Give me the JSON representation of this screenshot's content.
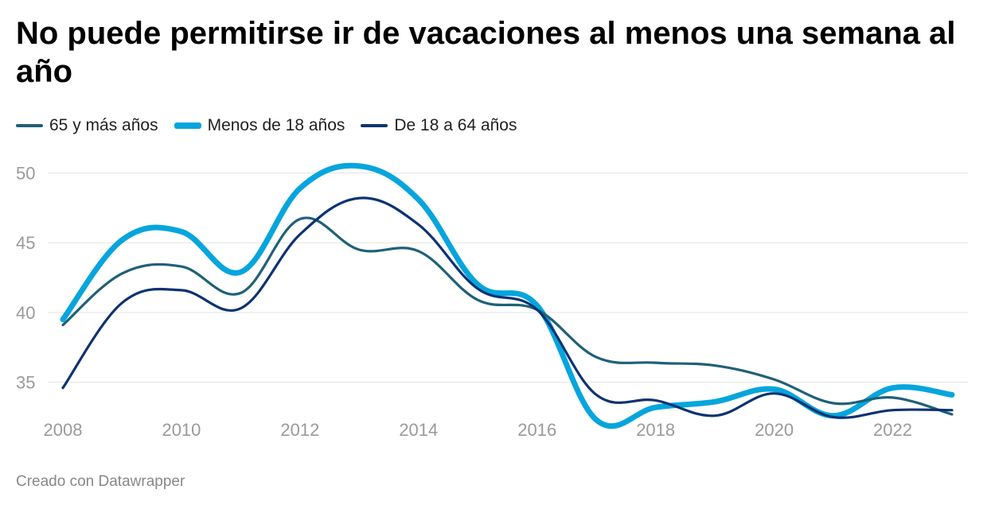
{
  "title": "No puede permitirse ir de vacaciones al menos una semana al año",
  "footer": "Creado con Datawrapper",
  "chart_data": {
    "type": "line",
    "title": "No puede permitirse ir de vacaciones al menos una semana al año",
    "xlabel": "",
    "ylabel": "",
    "x": [
      2008,
      2009,
      2010,
      2011,
      2012,
      2013,
      2014,
      2015,
      2016,
      2017,
      2018,
      2019,
      2020,
      2021,
      2022,
      2023
    ],
    "x_ticks": [
      2008,
      2010,
      2012,
      2014,
      2016,
      2018,
      2020,
      2022
    ],
    "y_ticks": [
      35,
      40,
      45,
      50
    ],
    "ylim": [
      32.3,
      51
    ],
    "xlim": [
      2008,
      2023
    ],
    "grid": true,
    "legend_position": "top-left",
    "series": [
      {
        "name": "65 y más años",
        "color": "#1f6078",
        "weight": "thin",
        "values": [
          39.1,
          42.8,
          43.3,
          41.4,
          46.7,
          44.5,
          44.4,
          40.9,
          40.2,
          36.8,
          36.4,
          36.2,
          35.2,
          33.5,
          33.9,
          32.7
        ]
      },
      {
        "name": "Menos de 18 años",
        "color": "#05a5dd",
        "weight": "thick",
        "values": [
          39.5,
          45.2,
          45.8,
          42.9,
          48.9,
          50.5,
          48.1,
          42.0,
          40.5,
          32.3,
          33.2,
          33.6,
          34.5,
          32.6,
          34.6,
          34.1
        ]
      },
      {
        "name": "De 18 a 64 años",
        "color": "#0d3272",
        "weight": "thin",
        "values": [
          34.6,
          40.7,
          41.6,
          40.3,
          45.6,
          48.2,
          46.3,
          41.7,
          40.2,
          34.1,
          33.7,
          32.6,
          34.2,
          32.5,
          33.0,
          33.0
        ]
      }
    ]
  }
}
